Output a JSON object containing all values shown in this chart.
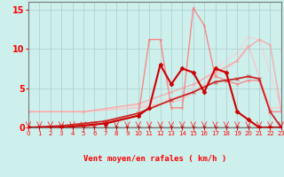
{
  "xlabel": "Vent moyen/en rafales ( km/h )",
  "xlim": [
    0,
    23
  ],
  "ylim": [
    0,
    16
  ],
  "yticks": [
    0,
    5,
    10,
    15
  ],
  "xticks": [
    0,
    1,
    2,
    3,
    4,
    5,
    6,
    7,
    8,
    9,
    10,
    11,
    12,
    13,
    14,
    15,
    16,
    17,
    18,
    19,
    20,
    21,
    22,
    23
  ],
  "bg_color": "#cdf0ed",
  "grid_color": "#aacccc",
  "lines": [
    {
      "x": [
        0,
        1,
        2,
        3,
        4,
        5,
        6,
        7,
        8,
        9,
        10,
        11,
        12,
        13,
        14,
        15,
        16,
        17,
        18,
        19,
        20,
        21,
        22,
        23
      ],
      "y": [
        0,
        0,
        0,
        0,
        0,
        0,
        0,
        0,
        0,
        0,
        0,
        0,
        0,
        0,
        0,
        0,
        0,
        0,
        0,
        0,
        0,
        0,
        0,
        0
      ],
      "color": "#990000",
      "lw": 1.0,
      "marker": "x",
      "ms": 2.5,
      "alpha": 1.0,
      "zorder": 5
    },
    {
      "x": [
        0,
        5,
        10,
        14,
        17,
        19,
        20,
        22,
        23
      ],
      "y": [
        2,
        2,
        2.5,
        3.5,
        6.5,
        8.5,
        10.5,
        2.5,
        2.5
      ],
      "color": "#ffbbbb",
      "lw": 1.0,
      "marker": "x",
      "ms": 2,
      "alpha": 0.8,
      "zorder": 1
    },
    {
      "x": [
        0,
        5,
        10,
        14,
        17,
        19,
        20,
        21,
        23
      ],
      "y": [
        2,
        2,
        2.8,
        4.0,
        7.5,
        9.5,
        11.5,
        11.2,
        2.5
      ],
      "color": "#ffcccc",
      "lw": 1.0,
      "marker": "x",
      "ms": 2,
      "alpha": 0.7,
      "zorder": 1
    },
    {
      "x": [
        0,
        5,
        10,
        13,
        15,
        17,
        19,
        20,
        21,
        22,
        23
      ],
      "y": [
        2,
        2,
        3.0,
        4.5,
        5.5,
        7.0,
        8.5,
        10.2,
        11.2,
        10.5,
        2.2
      ],
      "color": "#ff9999",
      "lw": 1.0,
      "marker": "x",
      "ms": 2,
      "alpha": 0.75,
      "zorder": 2
    },
    {
      "x": [
        0,
        3,
        7,
        10,
        13,
        15,
        17,
        18,
        19,
        20,
        21,
        22,
        23
      ],
      "y": [
        0,
        0.2,
        0.8,
        1.8,
        3.5,
        4.5,
        5.8,
        6.0,
        6.2,
        6.5,
        6.2,
        2.0,
        0.0
      ],
      "color": "#cc2222",
      "lw": 1.3,
      "marker": "x",
      "ms": 2.5,
      "alpha": 1.0,
      "zorder": 4
    },
    {
      "x": [
        0,
        3,
        7,
        10,
        11,
        12,
        13,
        14,
        15,
        16,
        17,
        18,
        19,
        20,
        21,
        22,
        23
      ],
      "y": [
        0,
        0,
        0.5,
        1.5,
        2.5,
        8.0,
        5.5,
        7.5,
        7.0,
        4.5,
        7.5,
        7.0,
        2.0,
        1.0,
        0,
        0,
        0
      ],
      "color": "#cc0000",
      "lw": 1.5,
      "marker": "D",
      "ms": 2.5,
      "alpha": 1.0,
      "zorder": 6
    },
    {
      "x": [
        0,
        5,
        10,
        11,
        12,
        13,
        14,
        15,
        16,
        17,
        18,
        19,
        20,
        21,
        22,
        23
      ],
      "y": [
        0,
        0,
        1.5,
        11.2,
        11.2,
        2.5,
        2.5,
        15.2,
        13.0,
        6.5,
        6.0,
        5.5,
        6.0,
        6.0,
        2.0,
        2.0
      ],
      "color": "#ff7777",
      "lw": 1.0,
      "marker": "x",
      "ms": 2,
      "alpha": 0.85,
      "zorder": 3
    }
  ]
}
